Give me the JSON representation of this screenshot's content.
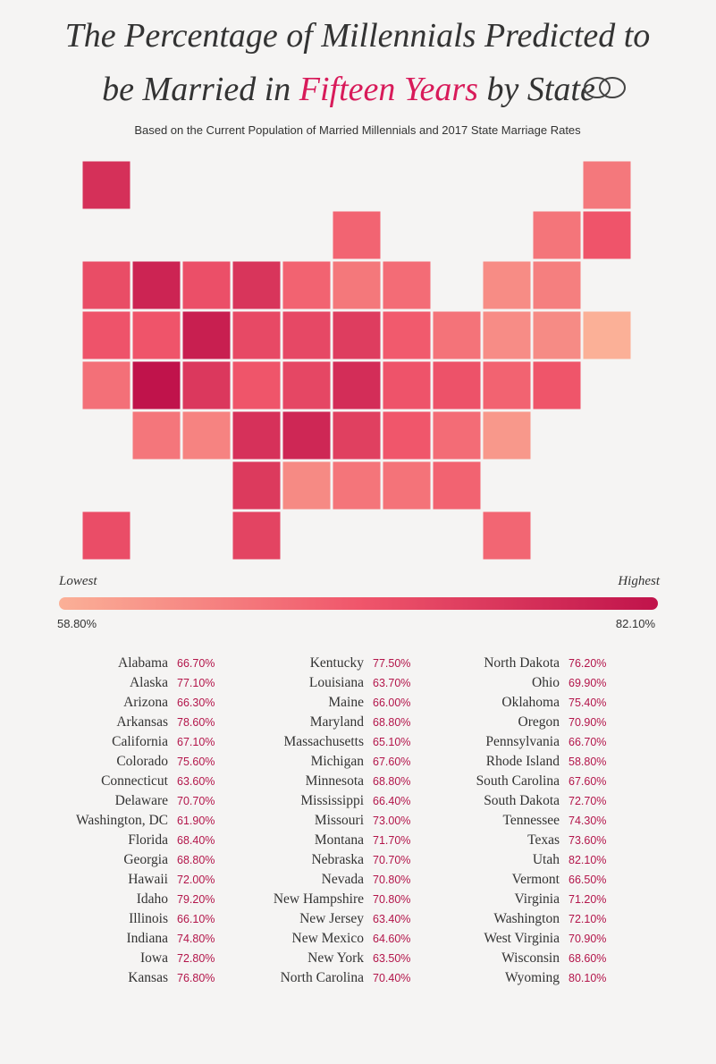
{
  "header": {
    "title_line1": "The Percentage of Millennials Predicted to",
    "title_line2_start": "be Married in",
    "title_highlight": "Fifteen Years",
    "title_line2_end": "by State",
    "subtitle": "Based on the Current Population of Married Millennials and 2017 State Marriage Rates"
  },
  "scale": {
    "low_label": "Lowest",
    "high_label": "Highest",
    "min": {
      "value": 58.8,
      "label": "58.80%"
    },
    "max": {
      "value": 82.1,
      "label": "82.10%"
    },
    "colors": [
      "#fbb097",
      "#f0566b",
      "#c0134b"
    ]
  },
  "states": [
    {
      "name": "Alabama",
      "value": 66.7,
      "value_label": "66.70%"
    },
    {
      "name": "Alaska",
      "value": 77.1,
      "value_label": "77.10%"
    },
    {
      "name": "Arizona",
      "value": 66.3,
      "value_label": "66.30%"
    },
    {
      "name": "Arkansas",
      "value": 78.6,
      "value_label": "78.60%"
    },
    {
      "name": "California",
      "value": 67.1,
      "value_label": "67.10%"
    },
    {
      "name": "Colorado",
      "value": 75.6,
      "value_label": "75.60%"
    },
    {
      "name": "Connecticut",
      "value": 63.6,
      "value_label": "63.60%"
    },
    {
      "name": "Delaware",
      "value": 70.7,
      "value_label": "70.70%"
    },
    {
      "name": "Washington, DC",
      "value": 61.9,
      "value_label": "61.90%"
    },
    {
      "name": "Florida",
      "value": 68.4,
      "value_label": "68.40%"
    },
    {
      "name": "Georgia",
      "value": 68.8,
      "value_label": "68.80%"
    },
    {
      "name": "Hawaii",
      "value": 72.0,
      "value_label": "72.00%"
    },
    {
      "name": "Idaho",
      "value": 79.2,
      "value_label": "79.20%"
    },
    {
      "name": "Illinois",
      "value": 66.1,
      "value_label": "66.10%"
    },
    {
      "name": "Indiana",
      "value": 74.8,
      "value_label": "74.80%"
    },
    {
      "name": "Iowa",
      "value": 72.8,
      "value_label": "72.80%"
    },
    {
      "name": "Kansas",
      "value": 76.8,
      "value_label": "76.80%"
    },
    {
      "name": "Kentucky",
      "value": 77.5,
      "value_label": "77.50%"
    },
    {
      "name": "Louisiana",
      "value": 63.7,
      "value_label": "63.70%"
    },
    {
      "name": "Maine",
      "value": 66.0,
      "value_label": "66.00%"
    },
    {
      "name": "Maryland",
      "value": 68.8,
      "value_label": "68.80%"
    },
    {
      "name": "Massachusetts",
      "value": 65.1,
      "value_label": "65.10%"
    },
    {
      "name": "Michigan",
      "value": 67.6,
      "value_label": "67.60%"
    },
    {
      "name": "Minnesota",
      "value": 68.8,
      "value_label": "68.80%"
    },
    {
      "name": "Mississippi",
      "value": 66.4,
      "value_label": "66.40%"
    },
    {
      "name": "Missouri",
      "value": 73.0,
      "value_label": "73.00%"
    },
    {
      "name": "Montana",
      "value": 71.7,
      "value_label": "71.70%"
    },
    {
      "name": "Nebraska",
      "value": 70.7,
      "value_label": "70.70%"
    },
    {
      "name": "Nevada",
      "value": 70.8,
      "value_label": "70.80%"
    },
    {
      "name": "New Hampshire",
      "value": 70.8,
      "value_label": "70.80%"
    },
    {
      "name": "New Jersey",
      "value": 63.4,
      "value_label": "63.40%"
    },
    {
      "name": "New Mexico",
      "value": 64.6,
      "value_label": "64.60%"
    },
    {
      "name": "New York",
      "value": 63.5,
      "value_label": "63.50%"
    },
    {
      "name": "North Carolina",
      "value": 70.4,
      "value_label": "70.40%"
    },
    {
      "name": "North Dakota",
      "value": 76.2,
      "value_label": "76.20%"
    },
    {
      "name": "Ohio",
      "value": 69.9,
      "value_label": "69.90%"
    },
    {
      "name": "Oklahoma",
      "value": 75.4,
      "value_label": "75.40%"
    },
    {
      "name": "Oregon",
      "value": 70.9,
      "value_label": "70.90%"
    },
    {
      "name": "Pennsylvania",
      "value": 66.7,
      "value_label": "66.70%"
    },
    {
      "name": "Rhode Island",
      "value": 58.8,
      "value_label": "58.80%"
    },
    {
      "name": "South Carolina",
      "value": 67.6,
      "value_label": "67.60%"
    },
    {
      "name": "South Dakota",
      "value": 72.7,
      "value_label": "72.70%"
    },
    {
      "name": "Tennessee",
      "value": 74.3,
      "value_label": "74.30%"
    },
    {
      "name": "Texas",
      "value": 73.6,
      "value_label": "73.60%"
    },
    {
      "name": "Utah",
      "value": 82.1,
      "value_label": "82.10%"
    },
    {
      "name": "Vermont",
      "value": 66.5,
      "value_label": "66.50%"
    },
    {
      "name": "Virginia",
      "value": 71.2,
      "value_label": "71.20%"
    },
    {
      "name": "Washington",
      "value": 72.1,
      "value_label": "72.10%"
    },
    {
      "name": "West Virginia",
      "value": 70.9,
      "value_label": "70.90%"
    },
    {
      "name": "Wisconsin",
      "value": 68.6,
      "value_label": "68.60%"
    },
    {
      "name": "Wyoming",
      "value": 80.1,
      "value_label": "80.10%"
    }
  ]
}
